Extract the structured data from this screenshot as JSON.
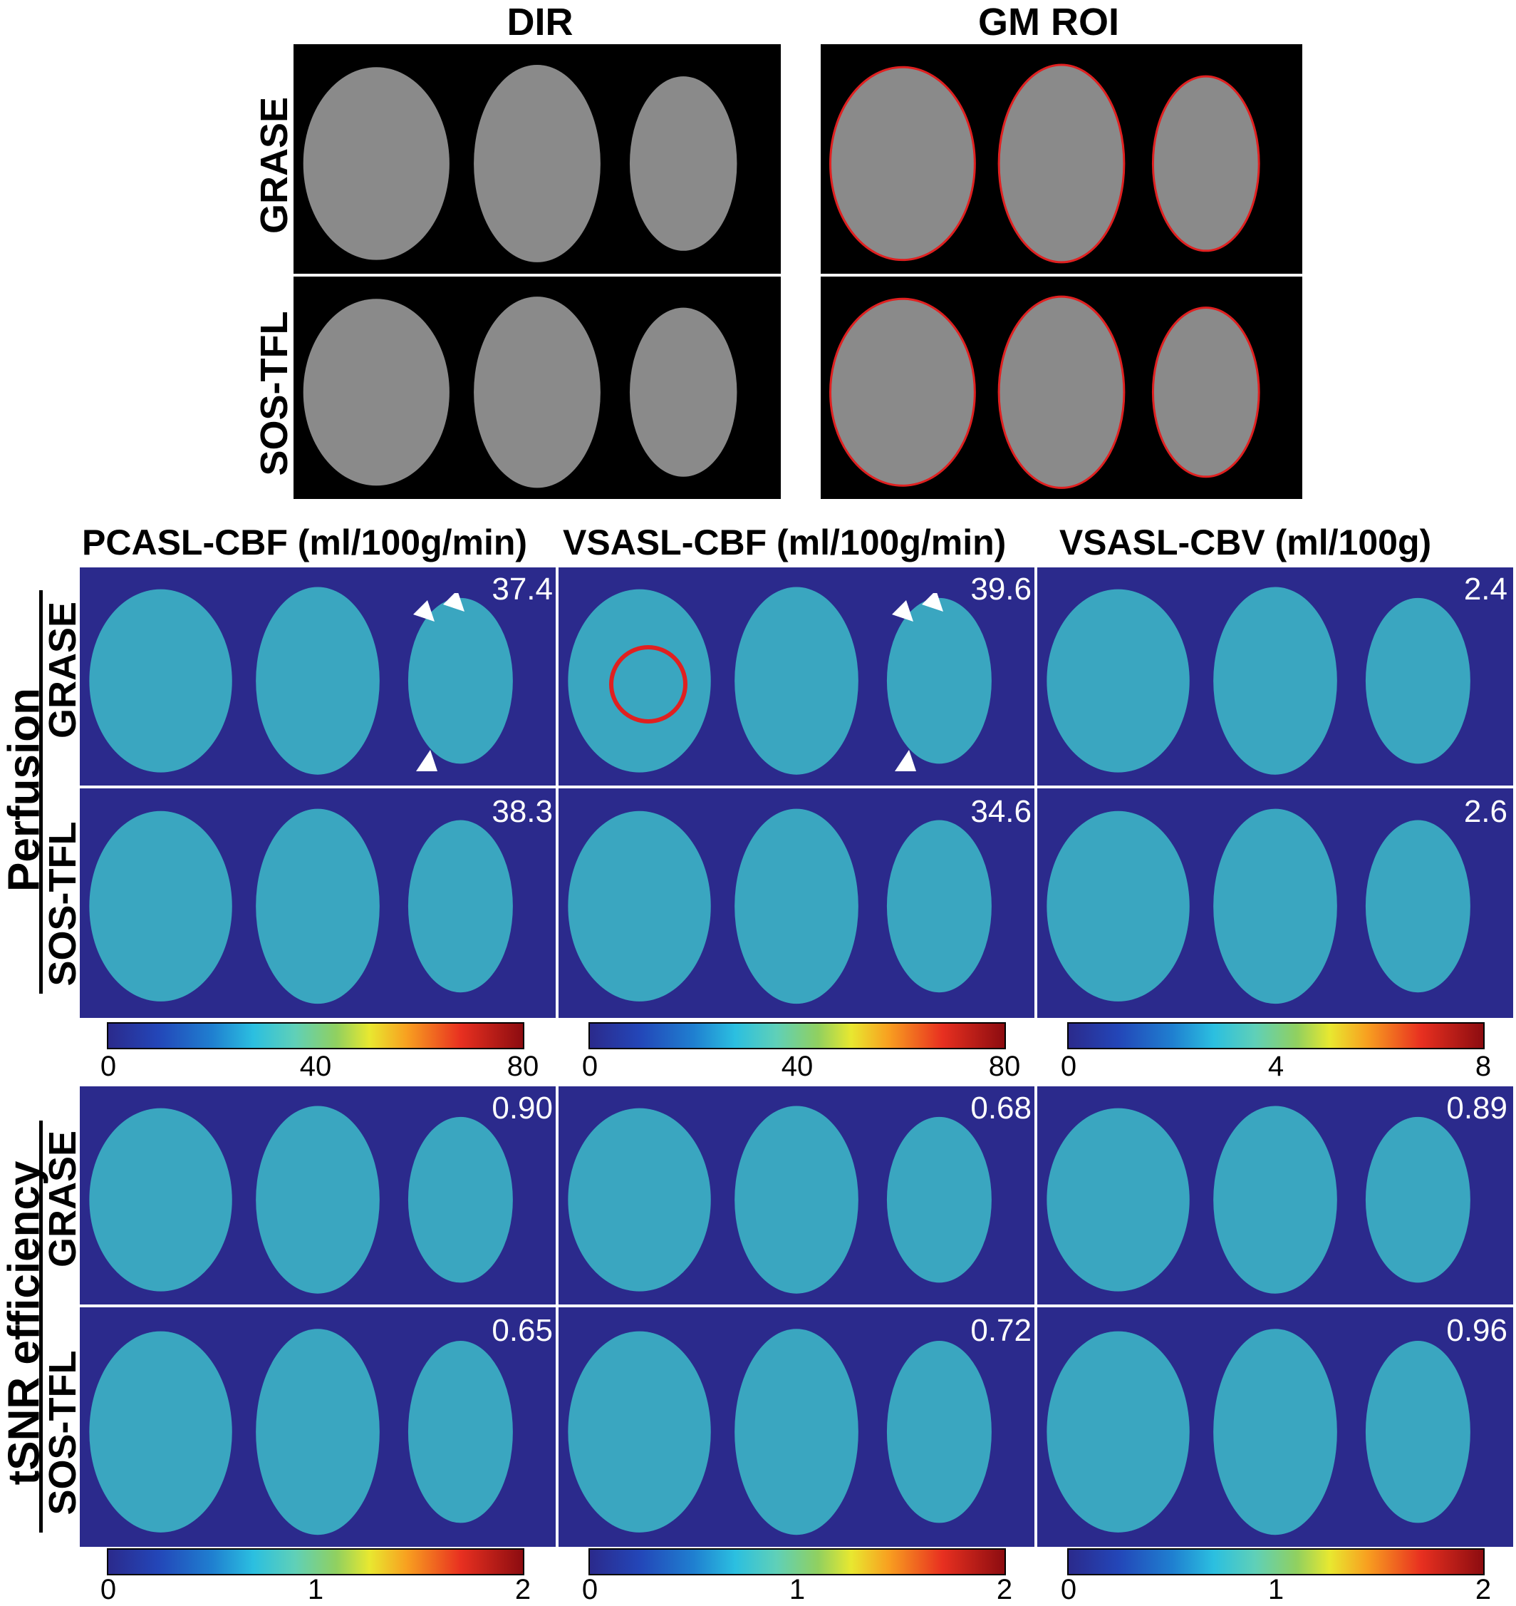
{
  "top": {
    "col_titles": [
      "DIR",
      "GM ROI"
    ],
    "row_labels": [
      "GRASE",
      "SOS-TFL"
    ]
  },
  "perfusion": {
    "group_label": "Perfusion",
    "col_titles": [
      "PCASL-CBF (ml/100g/min)",
      "VSASL-CBF (ml/100g/min)",
      "VSASL-CBV (ml/100g)"
    ],
    "row_labels": [
      "GRASE",
      "SOS-TFL"
    ],
    "values": [
      [
        "37.4",
        "39.6",
        "2.4"
      ],
      [
        "38.3",
        "34.6",
        "2.6"
      ]
    ],
    "colorbar_ticks": [
      [
        "0",
        "40",
        "80"
      ],
      [
        "0",
        "40",
        "80"
      ],
      [
        "0",
        "4",
        "8"
      ]
    ]
  },
  "tsnr": {
    "group_label": "tSNR efficiency",
    "row_labels": [
      "GRASE",
      "SOS-TFL"
    ],
    "values": [
      [
        "0.90",
        "0.68",
        "0.89"
      ],
      [
        "0.65",
        "0.72",
        "0.96"
      ]
    ],
    "colorbar_ticks": [
      [
        "0",
        "1",
        "2"
      ],
      [
        "0",
        "1",
        "2"
      ],
      [
        "0",
        "1",
        "2"
      ]
    ]
  },
  "colors": {
    "map_background": "#2b2a8c",
    "roi_outline": "#e02020",
    "annotation": "#ffffff"
  }
}
